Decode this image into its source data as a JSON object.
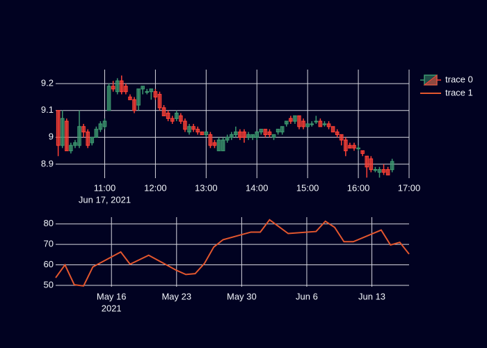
{
  "chart_data": [
    {
      "type": "candlestick",
      "series": [
        {
          "name": "trace 0",
          "increasing_color": "#3d9970",
          "decreasing_color": "#ff4136",
          "x": [
            "2021-06-17 10:05",
            "2021-06-17 10:10",
            "2021-06-17 10:15",
            "2021-06-17 10:20",
            "2021-06-17 10:25",
            "2021-06-17 10:30",
            "2021-06-17 10:35",
            "2021-06-17 10:40",
            "2021-06-17 10:45",
            "2021-06-17 10:50",
            "2021-06-17 10:55",
            "2021-06-17 11:00",
            "2021-06-17 11:05",
            "2021-06-17 11:10",
            "2021-06-17 11:15",
            "2021-06-17 11:20",
            "2021-06-17 11:25",
            "2021-06-17 11:30",
            "2021-06-17 11:35",
            "2021-06-17 11:40",
            "2021-06-17 11:45",
            "2021-06-17 11:50",
            "2021-06-17 11:55",
            "2021-06-17 12:00",
            "2021-06-17 12:05",
            "2021-06-17 12:10",
            "2021-06-17 12:15",
            "2021-06-17 12:20",
            "2021-06-17 12:25",
            "2021-06-17 12:30",
            "2021-06-17 12:35",
            "2021-06-17 12:40",
            "2021-06-17 12:45",
            "2021-06-17 12:50",
            "2021-06-17 12:55",
            "2021-06-17 13:00",
            "2021-06-17 13:05",
            "2021-06-17 13:10",
            "2021-06-17 13:15",
            "2021-06-17 13:20",
            "2021-06-17 13:25",
            "2021-06-17 13:30",
            "2021-06-17 13:35",
            "2021-06-17 13:40",
            "2021-06-17 13:45",
            "2021-06-17 13:50",
            "2021-06-17 13:55",
            "2021-06-17 14:00",
            "2021-06-17 14:05",
            "2021-06-17 14:10",
            "2021-06-17 14:15",
            "2021-06-17 14:20",
            "2021-06-17 14:25",
            "2021-06-17 14:30",
            "2021-06-17 14:35",
            "2021-06-17 14:40",
            "2021-06-17 14:45",
            "2021-06-17 14:50",
            "2021-06-17 14:55",
            "2021-06-17 15:00",
            "2021-06-17 15:05",
            "2021-06-17 15:10",
            "2021-06-17 15:15",
            "2021-06-17 15:20",
            "2021-06-17 15:25",
            "2021-06-17 15:30",
            "2021-06-17 15:35",
            "2021-06-17 15:40",
            "2021-06-17 15:45",
            "2021-06-17 15:50",
            "2021-06-17 15:55",
            "2021-06-17 16:00",
            "2021-06-17 16:05",
            "2021-06-17 16:10",
            "2021-06-17 16:15",
            "2021-06-17 16:20",
            "2021-06-17 16:25",
            "2021-06-17 16:30",
            "2021-06-17 16:35",
            "2021-06-17 16:40"
          ],
          "open": [
            9.1,
            8.97,
            9.06,
            8.95,
            8.97,
            8.97,
            9.04,
            9.02,
            8.98,
            9.0,
            9.03,
            9.04,
            9.1,
            9.19,
            9.17,
            9.21,
            9.19,
            9.15,
            9.14,
            9.12,
            9.18,
            9.17,
            9.17,
            9.17,
            9.16,
            9.11,
            9.09,
            9.07,
            9.07,
            9.08,
            9.06,
            9.02,
            9.04,
            9.03,
            9.02,
            9.01,
            9.01,
            8.98,
            8.95,
            8.95,
            8.99,
            9.0,
            9.01,
            9.02,
            9.02,
            9.0,
            9.0,
            9.0,
            9.02,
            9.03,
            9.02,
            9.0,
            9.02,
            9.02,
            9.05,
            9.07,
            9.06,
            9.08,
            9.06,
            9.04,
            9.05,
            9.06,
            9.06,
            9.05,
            9.05,
            9.04,
            9.02,
            9.01,
            8.99,
            8.97,
            8.97,
            8.96,
            8.95,
            8.93,
            8.92,
            8.88,
            8.87,
            8.88,
            8.88,
            8.88
          ],
          "high": [
            9.1,
            9.1,
            9.07,
            8.98,
            8.99,
            9.1,
            9.05,
            9.03,
            9.0,
            9.04,
            9.06,
            9.07,
            9.2,
            9.21,
            9.22,
            9.23,
            9.2,
            9.16,
            9.15,
            9.18,
            9.19,
            9.18,
            9.18,
            9.18,
            9.17,
            9.12,
            9.1,
            9.08,
            9.1,
            9.09,
            9.07,
            9.05,
            9.05,
            9.04,
            9.02,
            9.02,
            9.02,
            8.99,
            9.0,
            9.0,
            9.01,
            9.02,
            9.04,
            9.03,
            9.03,
            9.02,
            9.01,
            9.02,
            9.03,
            9.03,
            9.03,
            9.01,
            9.03,
            9.04,
            9.06,
            9.08,
            9.08,
            9.08,
            9.07,
            9.05,
            9.06,
            9.08,
            9.07,
            9.06,
            9.06,
            9.04,
            9.03,
            9.01,
            9.0,
            8.98,
            8.98,
            8.97,
            8.95,
            8.93,
            8.93,
            8.89,
            8.89,
            8.9,
            8.89,
            8.92
          ],
          "low": [
            8.93,
            8.96,
            8.95,
            8.94,
            8.96,
            8.96,
            9.0,
            8.96,
            8.97,
            9.0,
            9.02,
            9.03,
            9.1,
            9.17,
            9.16,
            9.16,
            9.16,
            9.14,
            9.09,
            9.1,
            9.16,
            9.16,
            9.14,
            9.14,
            9.1,
            9.08,
            9.06,
            9.05,
            9.06,
            9.05,
            9.02,
            9.01,
            9.02,
            9.01,
            9.01,
            9.0,
            8.96,
            8.96,
            8.95,
            8.95,
            8.98,
            8.99,
            9.0,
            8.99,
            8.98,
            8.99,
            8.99,
            8.99,
            9.01,
            9.0,
            9.0,
            8.99,
            9.01,
            9.01,
            9.04,
            9.05,
            9.05,
            9.03,
            9.03,
            9.04,
            9.04,
            9.05,
            9.04,
            9.04,
            9.03,
            9.02,
            9.0,
            8.97,
            8.93,
            8.96,
            8.95,
            8.95,
            8.93,
            8.85,
            8.87,
            8.87,
            8.85,
            8.86,
            8.86,
            8.87
          ],
          "close": [
            8.97,
            9.07,
            8.95,
            8.97,
            8.98,
            9.04,
            9.02,
            8.97,
            9.0,
            9.03,
            9.05,
            9.06,
            9.19,
            9.18,
            9.21,
            9.17,
            9.17,
            9.14,
            9.1,
            9.18,
            9.19,
            9.17,
            9.18,
            9.15,
            9.11,
            9.08,
            9.07,
            9.06,
            9.09,
            9.06,
            9.03,
            9.04,
            9.03,
            9.02,
            9.01,
            9.02,
            8.97,
            8.97,
            8.99,
            8.99,
            9.0,
            9.01,
            9.02,
            9.0,
            9.0,
            9.01,
            9.01,
            9.02,
            9.03,
            9.01,
            9.01,
            9.01,
            9.03,
            9.04,
            9.06,
            9.06,
            9.08,
            9.04,
            9.04,
            9.05,
            9.05,
            9.06,
            9.04,
            9.05,
            9.04,
            9.02,
            9.01,
            8.99,
            8.95,
            8.96,
            8.96,
            8.96,
            8.94,
            8.89,
            8.88,
            8.88,
            8.88,
            8.87,
            8.86,
            8.91
          ]
        }
      ],
      "xlim": [
        "2021-06-17 10:02",
        "2021-06-17 17:00"
      ],
      "xticks": [
        {
          "value": "2021-06-17 11:00",
          "label": "11:00",
          "sublabel": "Jun 17, 2021"
        },
        {
          "value": "2021-06-17 12:00",
          "label": "12:00"
        },
        {
          "value": "2021-06-17 13:00",
          "label": "13:00"
        },
        {
          "value": "2021-06-17 14:00",
          "label": "14:00"
        },
        {
          "value": "2021-06-17 15:00",
          "label": "15:00"
        },
        {
          "value": "2021-06-17 16:00",
          "label": "16:00"
        },
        {
          "value": "2021-06-17 17:00",
          "label": "17:00"
        }
      ],
      "ylim": [
        8.848,
        9.252
      ],
      "yticks": [
        8.9,
        9,
        9.1,
        9.2
      ],
      "grid": true
    },
    {
      "type": "line",
      "series": [
        {
          "name": "trace 1",
          "color": "#e4572e",
          "x": [
            "2021-05-10",
            "2021-05-11",
            "2021-05-12",
            "2021-05-13",
            "2021-05-14",
            "2021-05-17",
            "2021-05-18",
            "2021-05-20",
            "2021-05-23",
            "2021-05-24",
            "2021-05-25",
            "2021-05-26",
            "2021-05-27",
            "2021-05-28",
            "2021-05-31",
            "2021-06-01",
            "2021-06-02",
            "2021-06-04",
            "2021-06-07",
            "2021-06-08",
            "2021-06-09",
            "2021-06-10",
            "2021-06-11",
            "2021-06-14",
            "2021-06-15",
            "2021-06-16",
            "2021-06-17"
          ],
          "values": [
            53.7,
            60,
            50.3,
            49.7,
            59,
            66.3,
            60.3,
            64.7,
            57.3,
            55.3,
            55.7,
            60.7,
            68.7,
            72.3,
            76,
            76,
            82,
            75.3,
            76.3,
            81.3,
            78.3,
            71.3,
            71.3,
            77,
            69.7,
            71,
            65.3
          ]
        }
      ],
      "xlim": [
        "2021-05-10",
        "2021-06-17"
      ],
      "xticks": [
        {
          "value": "2021-05-16",
          "label": "May 16",
          "sublabel": "2021"
        },
        {
          "value": "2021-05-23",
          "label": "May 23"
        },
        {
          "value": "2021-05-30",
          "label": "May 30"
        },
        {
          "value": "2021-06-06",
          "label": "Jun 6"
        },
        {
          "value": "2021-06-13",
          "label": "Jun 13"
        }
      ],
      "ylim": [
        49.3,
        83.3
      ],
      "yticks": [
        50,
        60,
        70,
        80
      ],
      "grid": true
    }
  ]
}
